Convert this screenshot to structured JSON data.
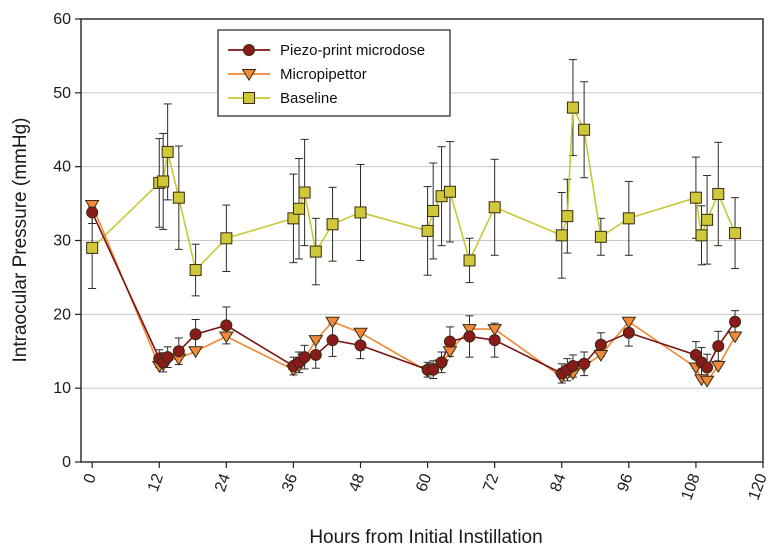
{
  "chart_data": {
    "type": "line",
    "xlabel": "Hours from Initial Instillation",
    "ylabel": "Intraocular Pressure (mmHg)",
    "xlim": [
      -2,
      120
    ],
    "ylim": [
      0,
      60
    ],
    "x_ticks": [
      0,
      12,
      24,
      36,
      48,
      60,
      72,
      84,
      96,
      108,
      120
    ],
    "y_ticks": [
      0,
      10,
      20,
      30,
      40,
      50,
      60
    ],
    "grid": "horizontal",
    "legend_position": "top-center",
    "series": [
      {
        "name": "Piezo-print microdose",
        "marker": "circle",
        "color": "#7a1414",
        "marker_color": "#8b1a1a",
        "x": [
          0,
          12,
          12.7,
          13.5,
          15.5,
          18.5,
          24,
          36,
          37,
          38,
          40,
          43,
          48,
          60,
          61,
          62.5,
          64,
          67.5,
          72,
          84,
          85,
          86,
          88,
          91,
          96,
          108,
          109,
          110,
          112,
          115
        ],
        "y": [
          33.8,
          14.0,
          13.5,
          14.2,
          15.0,
          17.3,
          18.5,
          13.0,
          13.5,
          14.2,
          14.5,
          16.5,
          15.8,
          12.5,
          12.5,
          13.5,
          16.3,
          17.0,
          16.5,
          12.0,
          12.5,
          13.0,
          13.3,
          15.9,
          17.5,
          14.5,
          13.5,
          12.8,
          15.7,
          19.0
        ],
        "err": [
          1.5,
          1.2,
          1.3,
          1.4,
          1.8,
          2.0,
          2.5,
          1.2,
          1.4,
          1.6,
          1.8,
          2.2,
          1.8,
          1.0,
          1.2,
          1.4,
          2.0,
          2.8,
          2.3,
          1.3,
          1.5,
          1.5,
          1.6,
          1.6,
          1.8,
          1.8,
          2.0,
          1.8,
          2.0,
          1.5
        ]
      },
      {
        "name": "Micropipettor",
        "marker": "triangle-down",
        "color": "#ee8833",
        "marker_color": "#f08a3a",
        "x": [
          0,
          12,
          12.7,
          13.5,
          15.5,
          18.5,
          24,
          36,
          37,
          38,
          40,
          43,
          48,
          60,
          61,
          62.5,
          64,
          67.5,
          72,
          84,
          85,
          86,
          88,
          91,
          96,
          108,
          109,
          110,
          112,
          115
        ],
        "y": [
          34.8,
          13.0,
          13.2,
          13.8,
          14.0,
          15.0,
          17.0,
          12.5,
          13.0,
          14.0,
          16.5,
          19.0,
          17.5,
          12.3,
          12.7,
          13.2,
          15.0,
          18.0,
          18.0,
          11.5,
          12.0,
          12.0,
          13.0,
          14.5,
          19.0,
          12.8,
          11.2,
          11.0,
          13.0,
          17.0
        ]
      },
      {
        "name": "Baseline",
        "marker": "square",
        "color": "#c8c832",
        "marker_color": "#cfc838",
        "x": [
          0,
          12,
          12.7,
          13.5,
          15.5,
          18.5,
          24,
          36,
          37,
          38,
          40,
          43,
          48,
          60,
          61,
          62.5,
          64,
          67.5,
          72,
          84,
          85,
          86,
          88,
          91,
          96,
          108,
          109,
          110,
          112,
          115
        ],
        "y": [
          29.0,
          37.8,
          38.0,
          42.0,
          35.8,
          26.0,
          30.3,
          33.0,
          34.3,
          36.5,
          28.5,
          32.2,
          33.8,
          31.3,
          34.0,
          36.0,
          36.6,
          27.3,
          34.5,
          30.7,
          33.3,
          48.0,
          45.0,
          30.5,
          33.0,
          35.8,
          30.7,
          32.8,
          36.3,
          31.0
        ],
        "err": [
          5.5,
          6.0,
          6.5,
          6.5,
          7.0,
          3.5,
          4.5,
          6.0,
          6.8,
          7.2,
          4.5,
          5.0,
          6.5,
          6.0,
          6.5,
          6.7,
          6.8,
          3.0,
          6.5,
          5.8,
          5.0,
          6.5,
          6.5,
          2.5,
          5.0,
          5.5,
          4.0,
          6.0,
          7.0,
          4.8
        ]
      }
    ]
  }
}
